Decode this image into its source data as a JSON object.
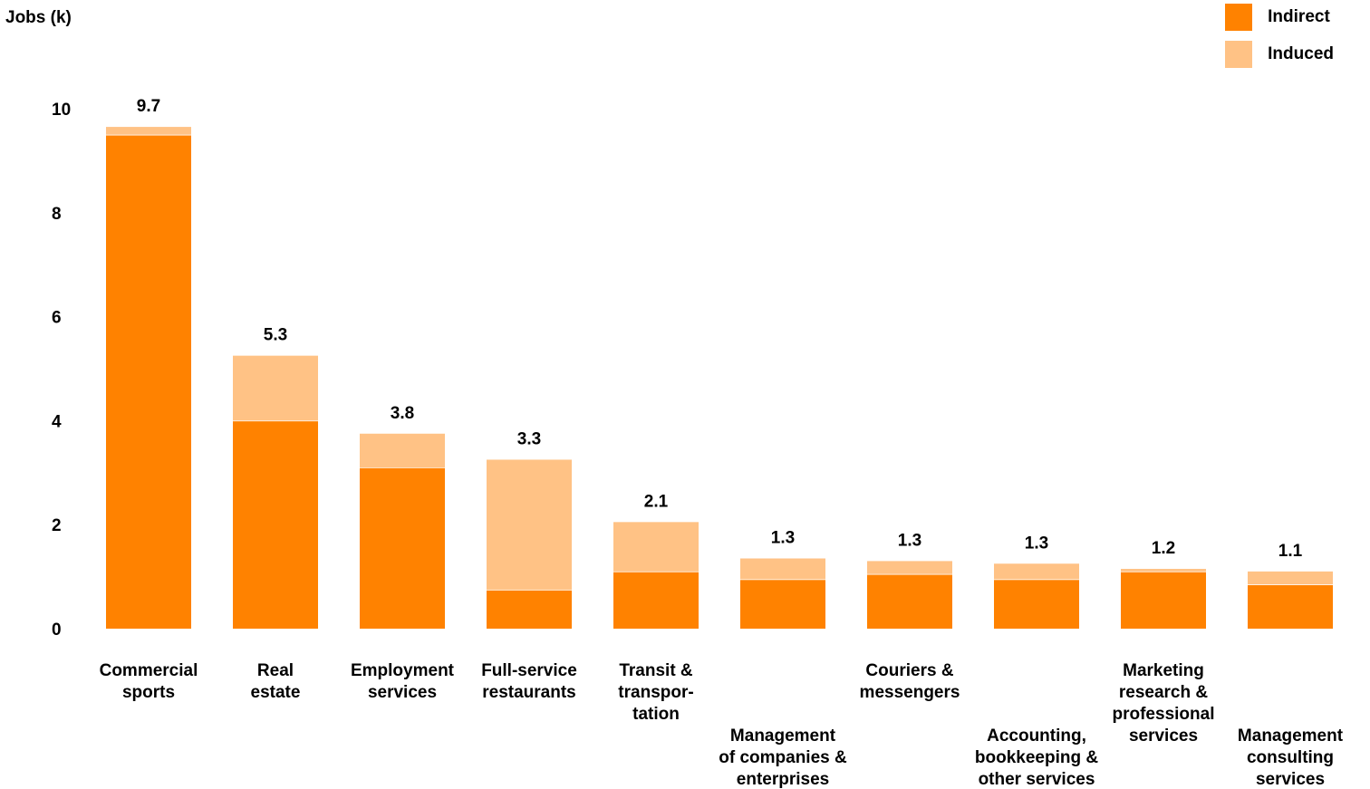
{
  "chart_data": {
    "type": "bar",
    "stacked": true,
    "ylabel": "Jobs (k)",
    "ylim": [
      0,
      10
    ],
    "yticks": [
      0,
      2,
      4,
      6,
      8,
      10
    ],
    "grid": false,
    "legend_position": "top-right",
    "categories": [
      [
        "Commercial",
        "sports"
      ],
      [
        "Real",
        "estate"
      ],
      [
        "Employment",
        "services"
      ],
      [
        "Full-service",
        "restaurants"
      ],
      [
        "Transit &",
        "transpor-",
        "tation"
      ],
      [
        "Management",
        "of companies &",
        "enterprises"
      ],
      [
        "Couriers &",
        "messengers"
      ],
      [
        "Accounting,",
        "bookkeeping &",
        "other services"
      ],
      [
        "Marketing",
        "research &",
        "professional",
        "services"
      ],
      [
        "Management",
        "consulting",
        "services"
      ]
    ],
    "label_lowered": [
      false,
      false,
      false,
      false,
      false,
      true,
      false,
      true,
      false,
      true
    ],
    "totals_labels": [
      "9.7",
      "5.3",
      "3.8",
      "3.3",
      "2.1",
      "1.3",
      "1.3",
      "1.3",
      "1.2",
      "1.1"
    ],
    "series": [
      {
        "name": "Indirect",
        "color": "#FF8200",
        "values": [
          9.5,
          4.0,
          3.1,
          0.75,
          1.1,
          0.95,
          1.05,
          0.95,
          1.1,
          0.85
        ]
      },
      {
        "name": "Induced",
        "color": "#FFC285",
        "values": [
          0.15,
          1.25,
          0.65,
          2.5,
          0.95,
          0.4,
          0.25,
          0.3,
          0.05,
          0.25
        ]
      }
    ]
  }
}
